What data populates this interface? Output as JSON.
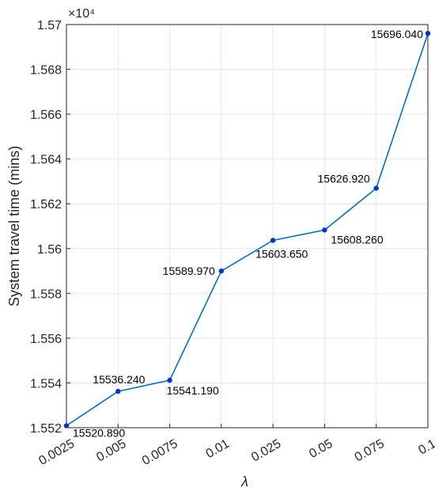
{
  "chart_data": {
    "type": "line",
    "categories": [
      "0.0025",
      "0.005",
      "0.0075",
      "0.01",
      "0.025",
      "0.05",
      "0.075",
      "0.1"
    ],
    "series": [
      {
        "values": [
          15520.89,
          15536.24,
          15541.19,
          15589.97,
          15603.65,
          15608.26,
          15626.92,
          15696.04
        ]
      }
    ],
    "data_labels": [
      "15520.890",
      "15536.240",
      "15541.190",
      "15589.970",
      "15603.650",
      "15608.260",
      "15626.920",
      "15696.040"
    ],
    "xlabel": "λ",
    "ylabel": "System travel time (mins)",
    "y_scale_exponent_label": "×10⁴",
    "y_tick_labels": [
      "1.552",
      "1.554",
      "1.556",
      "1.558",
      "1.56",
      "1.562",
      "1.564",
      "1.566",
      "1.568",
      "1.57"
    ],
    "y_tick_values": [
      15520,
      15540,
      15560,
      15580,
      15600,
      15620,
      15640,
      15660,
      15680,
      15700
    ],
    "ylim": [
      15520,
      15700
    ],
    "grid": true,
    "line_color": "#0072BD",
    "marker_color": "#0033CC"
  }
}
